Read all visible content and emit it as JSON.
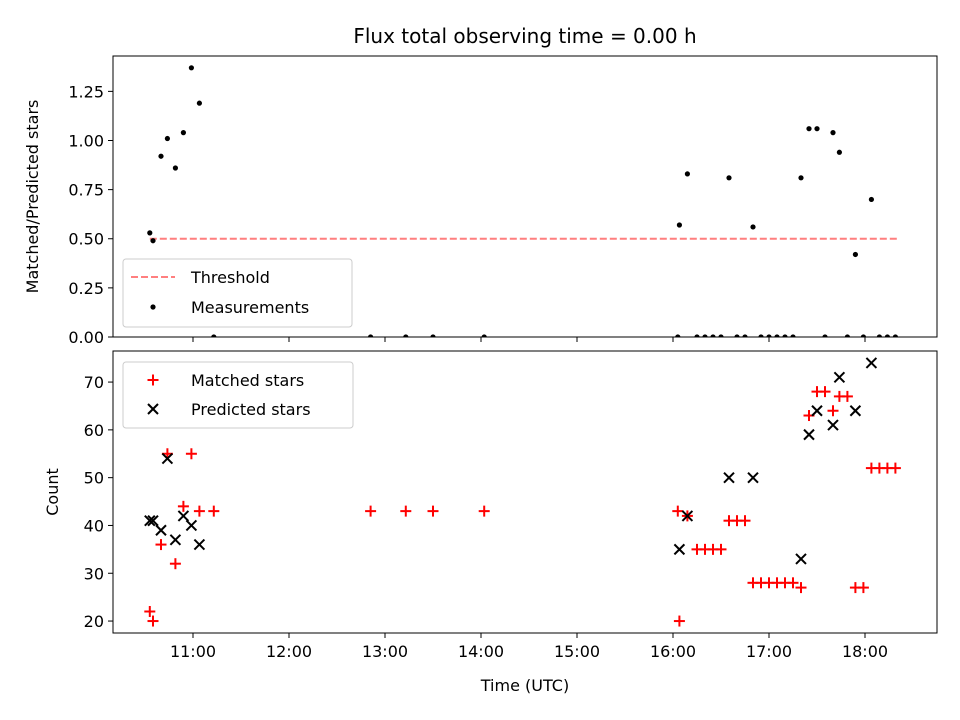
{
  "title": "Flux total observing time = 0.00 h",
  "colors": {
    "threshold": "#ff7f7f",
    "measurement": "#000000",
    "matched": "#ff0000",
    "predicted": "#000000"
  },
  "chart_data": [
    {
      "type": "scatter",
      "panel": "top",
      "xlabel": "",
      "ylabel": "Matched/Predicted stars",
      "xlim": [
        "10:10",
        "18:45"
      ],
      "ylim": [
        0,
        1.43
      ],
      "yticks": [
        "0.00",
        "0.25",
        "0.50",
        "0.75",
        "1.00",
        "1.25"
      ],
      "xtick_labels_visible": false,
      "legend": {
        "placement": "lower-left",
        "entries": [
          "Threshold",
          "Measurements"
        ]
      },
      "series": [
        {
          "name": "Threshold",
          "kind": "dashed-line",
          "x": [
            "10:33",
            "18:20"
          ],
          "y": [
            0.5,
            0.5
          ]
        },
        {
          "name": "Measurements",
          "kind": "points",
          "points": [
            [
              "10:33",
              0.53
            ],
            [
              "10:35",
              0.49
            ],
            [
              "10:40",
              0.92
            ],
            [
              "10:44",
              1.01
            ],
            [
              "10:49",
              0.86
            ],
            [
              "10:54",
              1.04
            ],
            [
              "10:59",
              1.37
            ],
            [
              "11:04",
              1.19
            ],
            [
              "11:13",
              0.0
            ],
            [
              "12:51",
              0.0
            ],
            [
              "13:13",
              0.0
            ],
            [
              "13:30",
              0.0
            ],
            [
              "14:02",
              0.0
            ],
            [
              "16:04",
              0.57
            ],
            [
              "16:03",
              0.0
            ],
            [
              "16:09",
              0.83
            ],
            [
              "16:15",
              0.0
            ],
            [
              "16:20",
              0.0
            ],
            [
              "16:25",
              0.0
            ],
            [
              "16:30",
              0.0
            ],
            [
              "16:35",
              0.81
            ],
            [
              "16:40",
              0.0
            ],
            [
              "16:45",
              0.0
            ],
            [
              "16:50",
              0.56
            ],
            [
              "16:55",
              0.0
            ],
            [
              "17:00",
              0.0
            ],
            [
              "17:05",
              0.0
            ],
            [
              "17:10",
              0.0
            ],
            [
              "17:15",
              0.0
            ],
            [
              "17:20",
              0.81
            ],
            [
              "17:25",
              1.06
            ],
            [
              "17:30",
              1.06
            ],
            [
              "17:35",
              0.0
            ],
            [
              "17:40",
              1.04
            ],
            [
              "17:44",
              0.94
            ],
            [
              "17:49",
              0.0
            ],
            [
              "17:54",
              0.42
            ],
            [
              "17:59",
              0.0
            ],
            [
              "18:04",
              0.7
            ],
            [
              "18:09",
              0.0
            ],
            [
              "18:14",
              0.0
            ],
            [
              "18:19",
              0.0
            ]
          ]
        }
      ]
    },
    {
      "type": "scatter",
      "panel": "bottom",
      "xlabel": "Time (UTC)",
      "ylabel": "Count",
      "xlim": [
        "10:10",
        "18:45"
      ],
      "ylim": [
        17.5,
        76.5
      ],
      "xticks": [
        "11:00",
        "12:00",
        "13:00",
        "14:00",
        "15:00",
        "16:00",
        "17:00",
        "18:00"
      ],
      "yticks": [
        "20",
        "30",
        "40",
        "50",
        "60",
        "70"
      ],
      "legend": {
        "placement": "upper-left",
        "entries": [
          "Matched stars",
          "Predicted stars"
        ]
      },
      "series": [
        {
          "name": "Matched stars",
          "marker": "plus",
          "points": [
            [
              "10:33",
              22
            ],
            [
              "10:35",
              20
            ],
            [
              "10:40",
              36
            ],
            [
              "10:44",
              55
            ],
            [
              "10:49",
              32
            ],
            [
              "10:54",
              44
            ],
            [
              "10:59",
              55
            ],
            [
              "11:04",
              43
            ],
            [
              "11:13",
              43
            ],
            [
              "12:51",
              43
            ],
            [
              "13:13",
              43
            ],
            [
              "13:30",
              43
            ],
            [
              "14:02",
              43
            ],
            [
              "16:03",
              43
            ],
            [
              "16:04",
              20
            ],
            [
              "16:09",
              42
            ],
            [
              "16:15",
              35
            ],
            [
              "16:20",
              35
            ],
            [
              "16:25",
              35
            ],
            [
              "16:30",
              35
            ],
            [
              "16:35",
              41
            ],
            [
              "16:40",
              41
            ],
            [
              "16:45",
              41
            ],
            [
              "16:50",
              28
            ],
            [
              "16:55",
              28
            ],
            [
              "17:00",
              28
            ],
            [
              "17:05",
              28
            ],
            [
              "17:10",
              28
            ],
            [
              "17:15",
              28
            ],
            [
              "17:20",
              27
            ],
            [
              "17:25",
              63
            ],
            [
              "17:30",
              68
            ],
            [
              "17:35",
              68
            ],
            [
              "17:40",
              64
            ],
            [
              "17:44",
              67
            ],
            [
              "17:49",
              67
            ],
            [
              "17:54",
              27
            ],
            [
              "17:59",
              27
            ],
            [
              "18:04",
              52
            ],
            [
              "18:09",
              52
            ],
            [
              "18:14",
              52
            ],
            [
              "18:19",
              52
            ]
          ]
        },
        {
          "name": "Predicted stars",
          "marker": "x",
          "points": [
            [
              "10:33",
              41
            ],
            [
              "10:35",
              41
            ],
            [
              "10:40",
              39
            ],
            [
              "10:44",
              54
            ],
            [
              "10:49",
              37
            ],
            [
              "10:54",
              42
            ],
            [
              "10:59",
              40
            ],
            [
              "11:04",
              36
            ],
            [
              "16:04",
              35
            ],
            [
              "16:09",
              42
            ],
            [
              "16:35",
              50
            ],
            [
              "16:50",
              50
            ],
            [
              "17:20",
              33
            ],
            [
              "17:25",
              59
            ],
            [
              "17:30",
              64
            ],
            [
              "17:40",
              61
            ],
            [
              "17:44",
              71
            ],
            [
              "17:54",
              64
            ],
            [
              "18:04",
              74
            ]
          ]
        }
      ]
    }
  ]
}
